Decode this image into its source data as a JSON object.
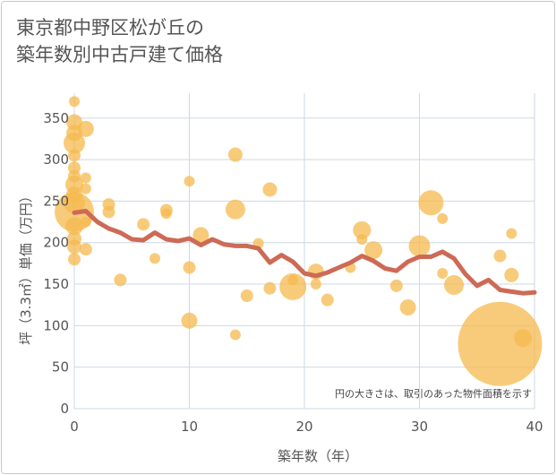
{
  "title_line1": "東京都中野区松が丘の",
  "title_line2": "築年数別中古戸建て価格",
  "chart_data": {
    "type": "scatter",
    "title": "東京都中野区松が丘の築年数別中古戸建て価格",
    "xlabel": "築年数（年）",
    "ylabel": "坪（3.3㎡）単価（万円）",
    "xlim": [
      0,
      40
    ],
    "ylim": [
      0,
      380
    ],
    "xticks": [
      "0",
      "10",
      "20",
      "30",
      "40"
    ],
    "yticks": [
      "0",
      "50",
      "100",
      "150",
      "200",
      "250",
      "300",
      "350"
    ],
    "grid": true,
    "note": "円の大きさは、取引のあった物件面積を示す",
    "colors": {
      "bubble": "#f5b94f",
      "line": "#cd6a55",
      "grid": "#cdd9e3"
    },
    "bubbles": [
      {
        "x": 0,
        "y": 370,
        "s": 6
      },
      {
        "x": 0,
        "y": 345,
        "s": 9
      },
      {
        "x": 0,
        "y": 332,
        "s": 9
      },
      {
        "x": 0,
        "y": 320,
        "s": 12
      },
      {
        "x": 0,
        "y": 305,
        "s": 7
      },
      {
        "x": 0,
        "y": 290,
        "s": 7
      },
      {
        "x": 0,
        "y": 280,
        "s": 7
      },
      {
        "x": 0,
        "y": 270,
        "s": 10
      },
      {
        "x": 0,
        "y": 258,
        "s": 9
      },
      {
        "x": 0,
        "y": 248,
        "s": 12
      },
      {
        "x": 0,
        "y": 237,
        "s": 22
      },
      {
        "x": 0,
        "y": 220,
        "s": 10
      },
      {
        "x": 0,
        "y": 205,
        "s": 8
      },
      {
        "x": 0,
        "y": 195,
        "s": 8
      },
      {
        "x": 0,
        "y": 180,
        "s": 7
      },
      {
        "x": 1,
        "y": 337,
        "s": 9
      },
      {
        "x": 1,
        "y": 278,
        "s": 6
      },
      {
        "x": 1,
        "y": 265,
        "s": 6
      },
      {
        "x": 1,
        "y": 225,
        "s": 6
      },
      {
        "x": 1,
        "y": 192,
        "s": 7
      },
      {
        "x": 3,
        "y": 246,
        "s": 7
      },
      {
        "x": 3,
        "y": 237,
        "s": 7
      },
      {
        "x": 4,
        "y": 155,
        "s": 7
      },
      {
        "x": 6,
        "y": 222,
        "s": 7
      },
      {
        "x": 7,
        "y": 181,
        "s": 6
      },
      {
        "x": 8,
        "y": 239,
        "s": 7
      },
      {
        "x": 8,
        "y": 235,
        "s": 6
      },
      {
        "x": 10,
        "y": 274,
        "s": 6
      },
      {
        "x": 10,
        "y": 170,
        "s": 7
      },
      {
        "x": 10,
        "y": 106,
        "s": 9
      },
      {
        "x": 11,
        "y": 209,
        "s": 9
      },
      {
        "x": 14,
        "y": 306,
        "s": 8
      },
      {
        "x": 14,
        "y": 240,
        "s": 11
      },
      {
        "x": 14,
        "y": 89,
        "s": 6
      },
      {
        "x": 15,
        "y": 136,
        "s": 7
      },
      {
        "x": 16,
        "y": 199,
        "s": 6
      },
      {
        "x": 17,
        "y": 264,
        "s": 8
      },
      {
        "x": 17,
        "y": 145,
        "s": 7
      },
      {
        "x": 19,
        "y": 147,
        "s": 15
      },
      {
        "x": 19,
        "y": 155,
        "s": 6
      },
      {
        "x": 21,
        "y": 165,
        "s": 9
      },
      {
        "x": 21,
        "y": 150,
        "s": 6
      },
      {
        "x": 22,
        "y": 131,
        "s": 7
      },
      {
        "x": 24,
        "y": 170,
        "s": 6
      },
      {
        "x": 25,
        "y": 215,
        "s": 10
      },
      {
        "x": 25,
        "y": 204,
        "s": 6
      },
      {
        "x": 26,
        "y": 191,
        "s": 10
      },
      {
        "x": 28,
        "y": 148,
        "s": 7
      },
      {
        "x": 29,
        "y": 122,
        "s": 9
      },
      {
        "x": 30,
        "y": 196,
        "s": 12
      },
      {
        "x": 31,
        "y": 248,
        "s": 14
      },
      {
        "x": 32,
        "y": 229,
        "s": 6
      },
      {
        "x": 32,
        "y": 163,
        "s": 6
      },
      {
        "x": 33,
        "y": 149,
        "s": 11
      },
      {
        "x": 37,
        "y": 184,
        "s": 7
      },
      {
        "x": 37,
        "y": 78,
        "s": 47
      },
      {
        "x": 38,
        "y": 211,
        "s": 6
      },
      {
        "x": 38,
        "y": 161,
        "s": 8
      },
      {
        "x": 39,
        "y": 85,
        "s": 10
      }
    ],
    "trend": {
      "x": [
        0,
        1,
        2,
        3,
        4,
        5,
        6,
        7,
        8,
        9,
        10,
        11,
        12,
        13,
        14,
        15,
        16,
        17,
        18,
        19,
        20,
        21,
        22,
        23,
        24,
        25,
        26,
        27,
        28,
        29,
        30,
        31,
        32,
        33,
        34,
        35,
        36,
        37,
        38,
        39,
        40
      ],
      "y": [
        236,
        238,
        225,
        217,
        212,
        204,
        203,
        212,
        204,
        202,
        205,
        197,
        204,
        198,
        196,
        196,
        193,
        176,
        185,
        177,
        163,
        160,
        164,
        170,
        176,
        184,
        178,
        169,
        166,
        177,
        183,
        183,
        189,
        181,
        162,
        148,
        155,
        143,
        141,
        139,
        140
      ]
    }
  }
}
